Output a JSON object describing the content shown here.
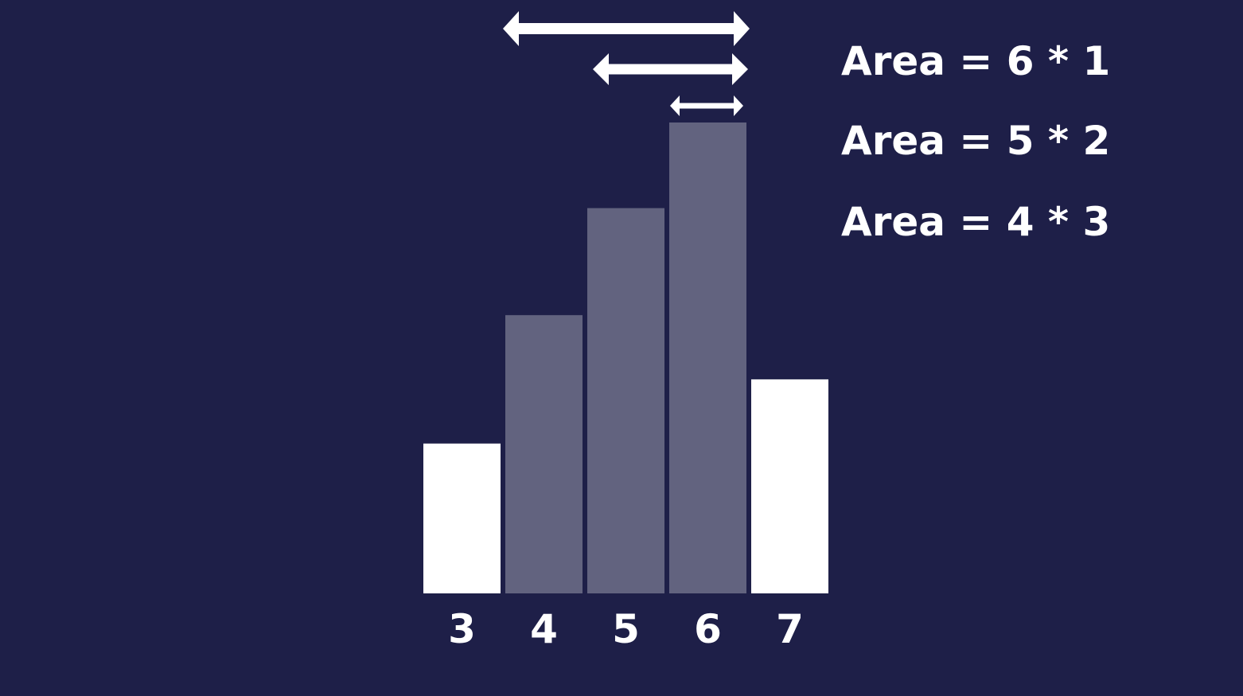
{
  "colors": {
    "background": "#1e1f48",
    "bar_plain": "#ffffff",
    "bar_highlighted": "#62637f",
    "arrow": "#ffffff",
    "text": "#ffffff"
  },
  "chart_data": {
    "type": "bar",
    "categories": [
      "3",
      "4",
      "5",
      "6",
      "7"
    ],
    "values": [
      3.5,
      6.5,
      9.0,
      11.0,
      5.0
    ],
    "highlighted": [
      false,
      true,
      true,
      true,
      false
    ],
    "ylim": [
      0,
      11.0
    ],
    "title": "",
    "xlabel": "",
    "ylabel": "",
    "grid": false
  },
  "arrows": [
    {
      "from_category": "4",
      "to_category": "6"
    },
    {
      "from_category": "5",
      "to_category": "6"
    },
    {
      "from_category": "6",
      "to_category": "6"
    }
  ],
  "area_labels": [
    "Area = 6 * 1",
    "Area = 5 * 2",
    "Area = 4 * 3"
  ]
}
